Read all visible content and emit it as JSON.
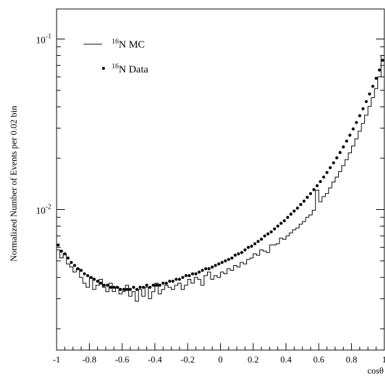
{
  "chart_data": {
    "type": "line",
    "title": "",
    "xlabel": "cosθ",
    "ylabel": "Normalized Number of Events per 0.02 bin",
    "xlim": [
      -1,
      1
    ],
    "ylim": [
      0.0015,
      0.15
    ],
    "yscale": "log",
    "x_ticks": [
      -1,
      -0.8,
      -0.6,
      -0.4,
      -0.2,
      0,
      0.2,
      0.4,
      0.6,
      0.8,
      1
    ],
    "x_tick_labels": [
      "-1",
      "-0.8",
      "-0.6",
      "-0.4",
      "-0.2",
      "0",
      "0.2",
      "0.4",
      "0.6",
      "0.8",
      "1"
    ],
    "y_major_ticks": [
      0.01,
      0.1
    ],
    "y_tick_labels": [
      {
        "base": "10",
        "exp": "-2"
      },
      {
        "base": "10",
        "exp": "-1"
      }
    ],
    "grid": false,
    "legend_position": "top-left",
    "legend": [
      {
        "sup": "16",
        "text": "N MC",
        "style": "histogram"
      },
      {
        "sup": "16",
        "text": "N Data",
        "style": "points"
      }
    ],
    "series": [
      {
        "name": "16N MC",
        "style": "histogram",
        "bin_width": 0.02,
        "x": [
          -1.0,
          -0.98,
          -0.96,
          -0.94,
          -0.92,
          -0.9,
          -0.88,
          -0.86,
          -0.84,
          -0.82,
          -0.8,
          -0.78,
          -0.76,
          -0.74,
          -0.72,
          -0.7,
          -0.68,
          -0.66,
          -0.64,
          -0.62,
          -0.6,
          -0.58,
          -0.56,
          -0.54,
          -0.52,
          -0.5,
          -0.48,
          -0.46,
          -0.44,
          -0.42,
          -0.4,
          -0.38,
          -0.36,
          -0.34,
          -0.32,
          -0.3,
          -0.28,
          -0.26,
          -0.24,
          -0.22,
          -0.2,
          -0.18,
          -0.16,
          -0.14,
          -0.12,
          -0.1,
          -0.08,
          -0.06,
          -0.04,
          -0.02,
          0.0,
          0.02,
          0.04,
          0.06,
          0.08,
          0.1,
          0.12,
          0.14,
          0.16,
          0.18,
          0.2,
          0.22,
          0.24,
          0.26,
          0.28,
          0.3,
          0.32,
          0.34,
          0.36,
          0.38,
          0.4,
          0.42,
          0.44,
          0.46,
          0.48,
          0.5,
          0.52,
          0.54,
          0.56,
          0.58,
          0.6,
          0.62,
          0.64,
          0.66,
          0.68,
          0.7,
          0.72,
          0.74,
          0.76,
          0.78,
          0.8,
          0.82,
          0.84,
          0.86,
          0.88,
          0.9,
          0.92,
          0.94,
          0.96,
          0.98
        ],
        "y": [
          0.0058,
          0.0052,
          0.0055,
          0.0048,
          0.0046,
          0.0043,
          0.0045,
          0.004,
          0.0037,
          0.0035,
          0.004,
          0.0034,
          0.0036,
          0.0039,
          0.0035,
          0.0033,
          0.0037,
          0.0033,
          0.0035,
          0.0032,
          0.0033,
          0.0036,
          0.0031,
          0.0033,
          0.0029,
          0.0034,
          0.0031,
          0.0035,
          0.003,
          0.0033,
          0.0037,
          0.0032,
          0.0034,
          0.0036,
          0.0035,
          0.0034,
          0.0036,
          0.0037,
          0.0034,
          0.0036,
          0.0039,
          0.0037,
          0.004,
          0.0039,
          0.0036,
          0.0041,
          0.0043,
          0.0039,
          0.0041,
          0.004,
          0.0043,
          0.0042,
          0.0045,
          0.0044,
          0.0047,
          0.0046,
          0.0049,
          0.0048,
          0.0051,
          0.0052,
          0.0055,
          0.0054,
          0.0058,
          0.0057,
          0.0056,
          0.0062,
          0.0062,
          0.0063,
          0.0068,
          0.0067,
          0.007,
          0.0073,
          0.0076,
          0.0078,
          0.0082,
          0.0085,
          0.009,
          0.0093,
          0.0099,
          0.013,
          0.0111,
          0.0119,
          0.0124,
          0.0134,
          0.0145,
          0.0155,
          0.0167,
          0.0181,
          0.0196,
          0.0215,
          0.0236,
          0.026,
          0.0288,
          0.032,
          0.0358,
          0.0402,
          0.0453,
          0.0512,
          0.06,
          0.08
        ]
      },
      {
        "name": "16N Data",
        "style": "points",
        "x": [
          -0.99,
          -0.97,
          -0.95,
          -0.93,
          -0.91,
          -0.89,
          -0.87,
          -0.85,
          -0.83,
          -0.81,
          -0.79,
          -0.77,
          -0.75,
          -0.73,
          -0.71,
          -0.69,
          -0.67,
          -0.65,
          -0.63,
          -0.61,
          -0.59,
          -0.57,
          -0.55,
          -0.53,
          -0.51,
          -0.49,
          -0.47,
          -0.45,
          -0.43,
          -0.41,
          -0.39,
          -0.37,
          -0.35,
          -0.33,
          -0.31,
          -0.29,
          -0.27,
          -0.25,
          -0.23,
          -0.21,
          -0.19,
          -0.17,
          -0.15,
          -0.13,
          -0.11,
          -0.09,
          -0.07,
          -0.05,
          -0.03,
          -0.01,
          0.01,
          0.03,
          0.05,
          0.07,
          0.09,
          0.11,
          0.13,
          0.15,
          0.17,
          0.19,
          0.21,
          0.23,
          0.25,
          0.27,
          0.29,
          0.31,
          0.33,
          0.35,
          0.37,
          0.39,
          0.41,
          0.43,
          0.45,
          0.47,
          0.49,
          0.51,
          0.53,
          0.55,
          0.57,
          0.59,
          0.61,
          0.63,
          0.65,
          0.67,
          0.69,
          0.71,
          0.73,
          0.75,
          0.77,
          0.79,
          0.81,
          0.83,
          0.85,
          0.87,
          0.89,
          0.91,
          0.93,
          0.95,
          0.97,
          0.99
        ],
        "y": [
          0.0062,
          0.0057,
          0.0055,
          0.0052,
          0.0049,
          0.0047,
          0.0045,
          0.0044,
          0.0042,
          0.0041,
          0.004,
          0.0039,
          0.0038,
          0.0037,
          0.0036,
          0.0036,
          0.0035,
          0.0035,
          0.0035,
          0.0034,
          0.0034,
          0.0034,
          0.0034,
          0.0035,
          0.0034,
          0.0035,
          0.0035,
          0.0036,
          0.0035,
          0.0036,
          0.0036,
          0.0036,
          0.0037,
          0.0037,
          0.0038,
          0.0038,
          0.0039,
          0.0039,
          0.004,
          0.0041,
          0.0041,
          0.0042,
          0.0042,
          0.0043,
          0.0044,
          0.0045,
          0.0045,
          0.0046,
          0.0047,
          0.0048,
          0.0049,
          0.005,
          0.0051,
          0.0052,
          0.0054,
          0.0055,
          0.0056,
          0.0058,
          0.006,
          0.0061,
          0.0063,
          0.0065,
          0.0067,
          0.007,
          0.0072,
          0.0074,
          0.0077,
          0.008,
          0.0083,
          0.0086,
          0.009,
          0.0094,
          0.0098,
          0.0102,
          0.0107,
          0.0112,
          0.0118,
          0.0124,
          0.0131,
          0.0138,
          0.0146,
          0.0155,
          0.0165,
          0.0176,
          0.0188,
          0.0201,
          0.0216,
          0.0233,
          0.0252,
          0.0273,
          0.0297,
          0.0324,
          0.0355,
          0.039,
          0.043,
          0.0476,
          0.0528,
          0.0588,
          0.0658,
          0.075
        ]
      }
    ]
  }
}
